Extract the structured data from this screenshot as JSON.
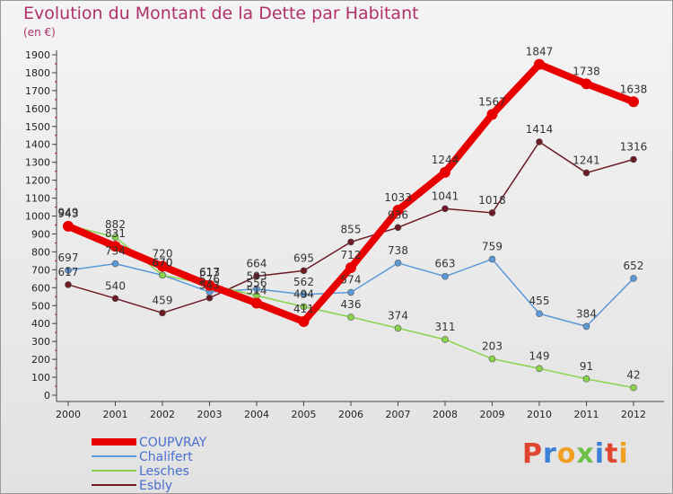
{
  "header": {
    "title": "Evolution du Montant de la Dette par Habitant",
    "unit": "(en €)"
  },
  "logo": {
    "letters": [
      "P",
      "r",
      "o",
      "x",
      "i",
      "t",
      "i"
    ],
    "colors": [
      "#e0452f",
      "#3c7fd8",
      "#f0a020",
      "#6cc04a",
      "#3c7fd8",
      "#e0452f",
      "#f0a020"
    ]
  },
  "chart_data": {
    "type": "line",
    "title": "Evolution du Montant de la Dette par Habitant",
    "ylabel": "(en €)",
    "x": [
      "2000",
      "2001",
      "2002",
      "2003",
      "2004",
      "2005",
      "2006",
      "2007",
      "2008",
      "2009",
      "2010",
      "2011",
      "2012"
    ],
    "ylim": [
      0,
      1900
    ],
    "yticks": [
      0,
      100,
      200,
      300,
      400,
      500,
      600,
      700,
      800,
      900,
      1000,
      1100,
      1200,
      1300,
      1400,
      1500,
      1600,
      1700,
      1800,
      1900
    ],
    "grid": false,
    "legend": "bottom-left",
    "series": [
      {
        "name": "COUPVRAY",
        "color": "#e80000",
        "values": [
          943,
          831,
          720,
          613,
          514,
          411,
          712,
          1033,
          1244,
          1567,
          1847,
          1738,
          1638
        ]
      },
      {
        "name": "Chalifert",
        "color": "#5a9ad8",
        "values": [
          697,
          734,
          670,
          576,
          593,
          562,
          574,
          738,
          663,
          759,
          455,
          384,
          652
        ]
      },
      {
        "name": "Lesches",
        "color": "#8ad44c",
        "values": [
          949,
          882,
          670,
          617,
          556,
          494,
          436,
          374,
          311,
          203,
          149,
          91,
          42
        ]
      },
      {
        "name": "Esbly",
        "color": "#6e1a24",
        "values": [
          617,
          540,
          459,
          543,
          664,
          695,
          855,
          936,
          1041,
          1018,
          1414,
          1241,
          1316
        ]
      }
    ]
  }
}
